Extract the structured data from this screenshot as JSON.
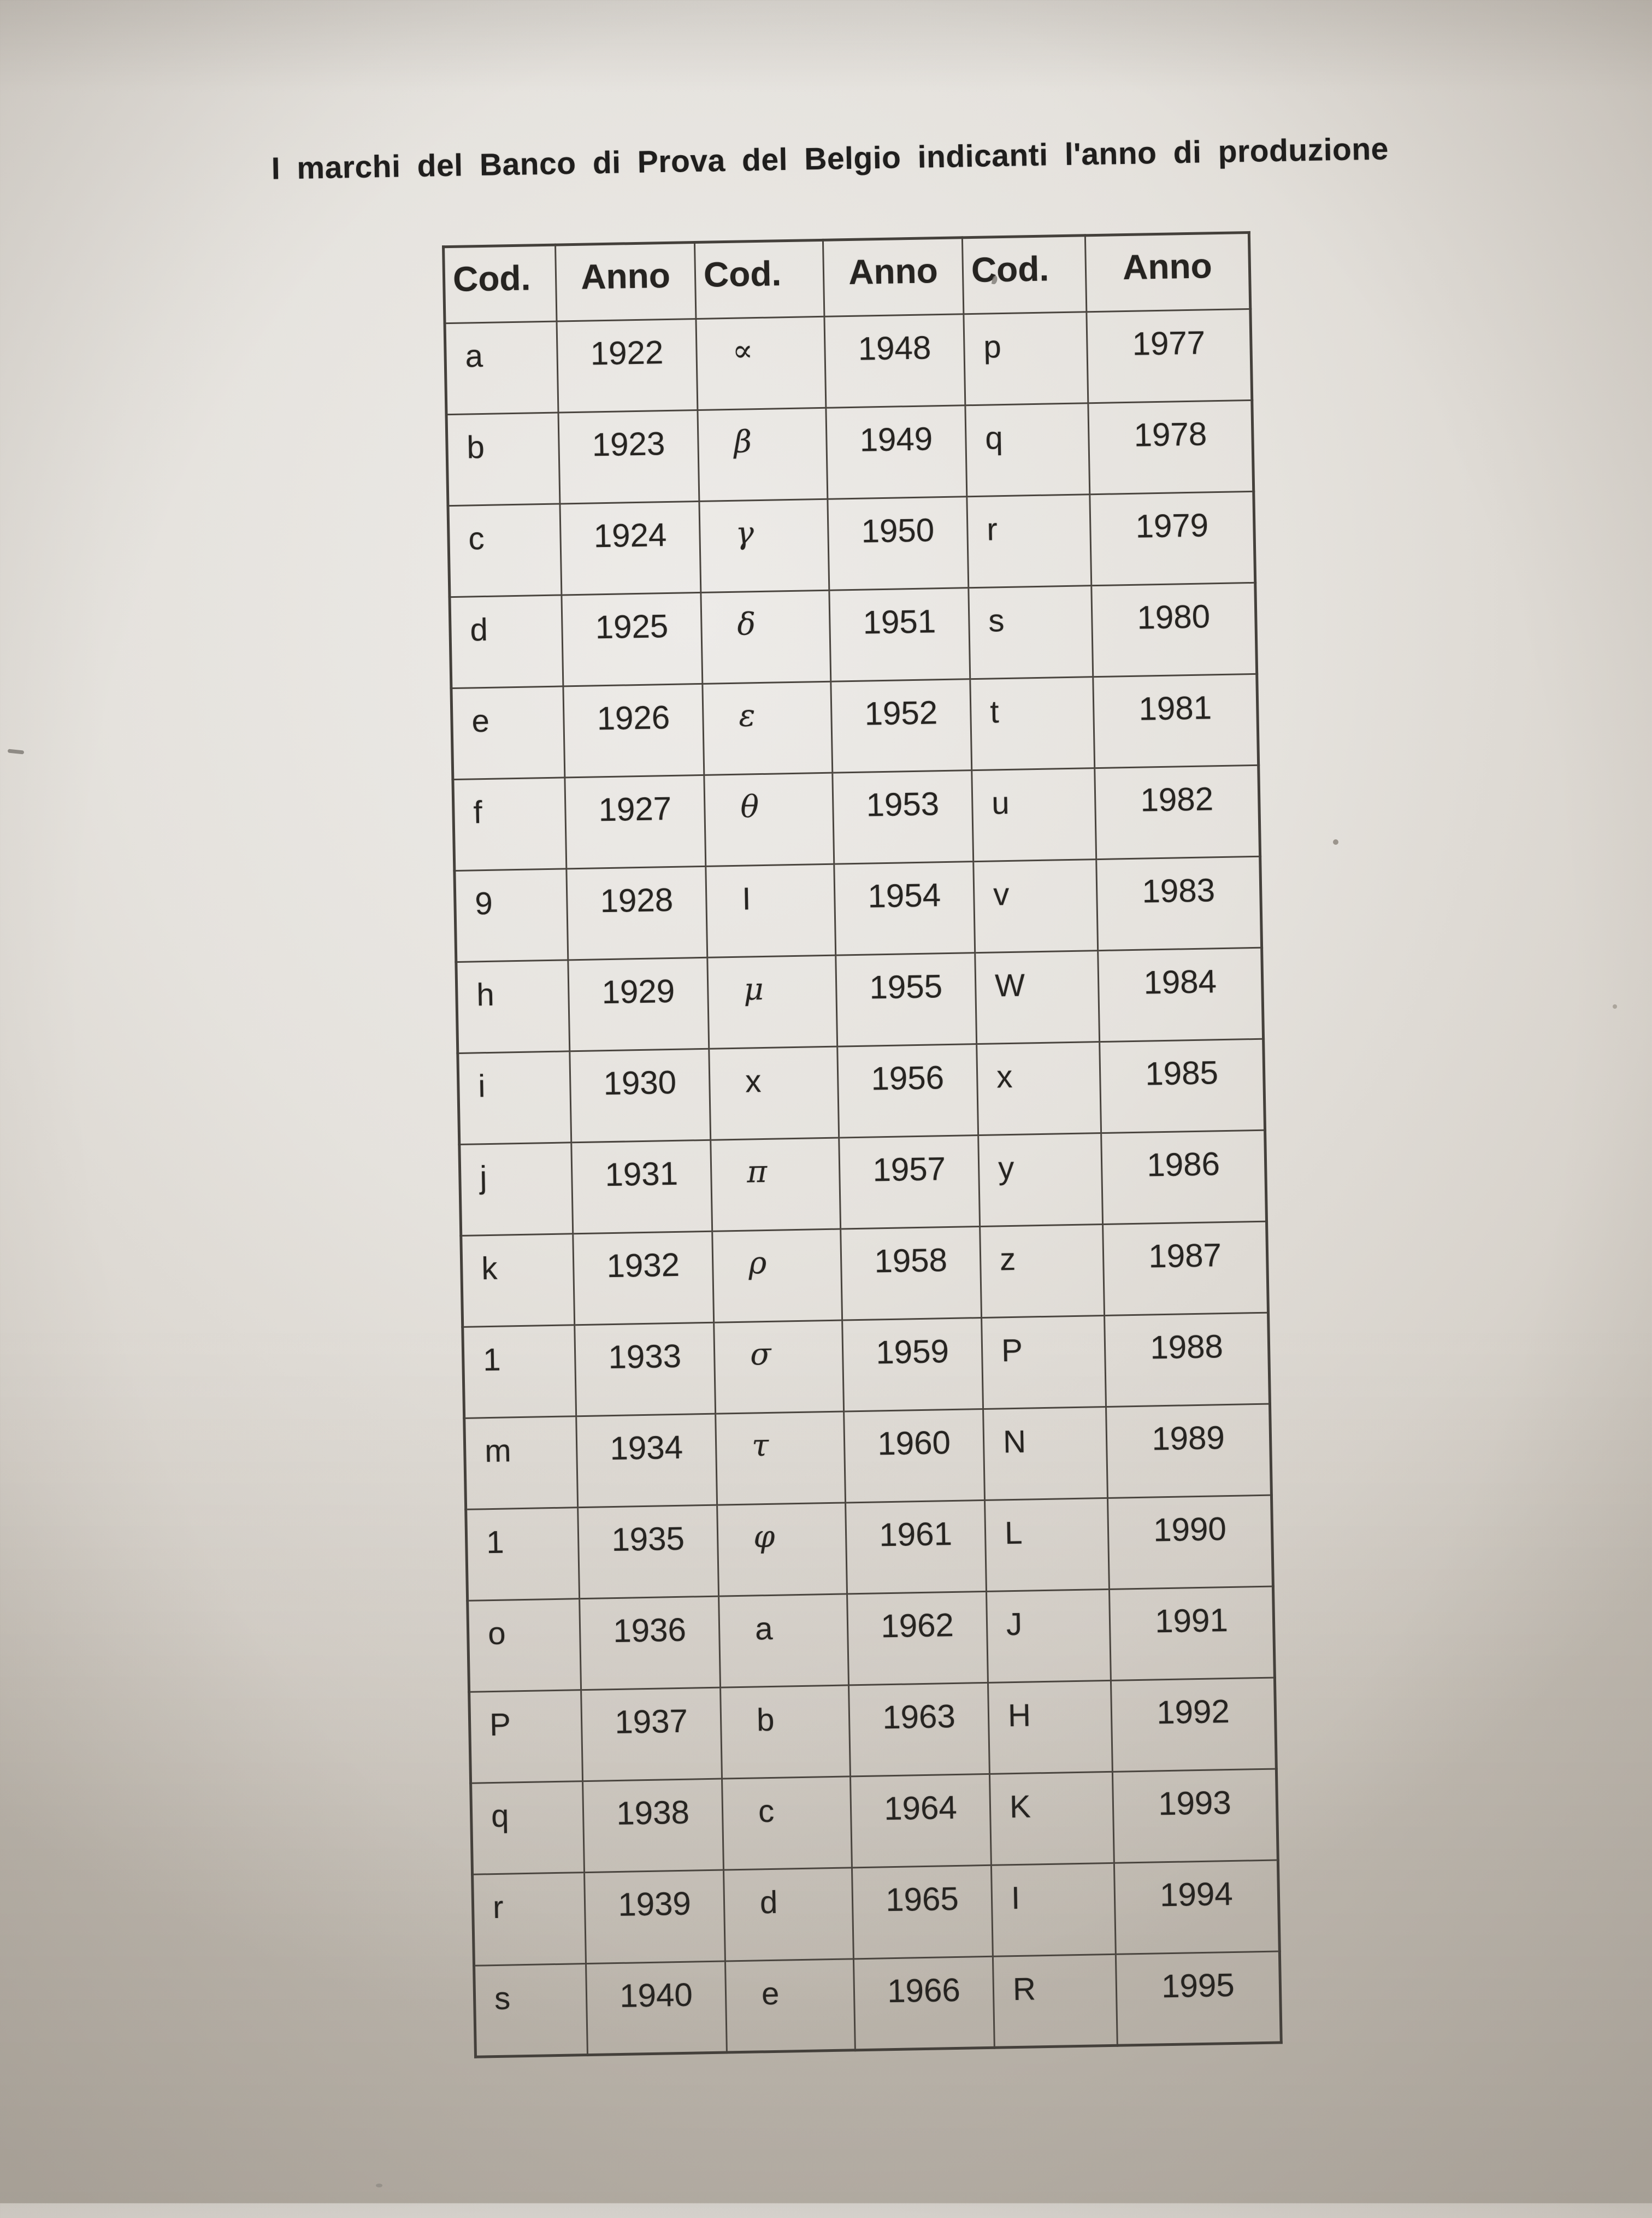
{
  "page": {
    "title": "I marchi del Banco di Prova del Belgio indicanti l'anno di produzione"
  },
  "table": {
    "headers": [
      {
        "label": "Cod."
      },
      {
        "label": "Anno"
      },
      {
        "label": "Cod."
      },
      {
        "label": "Anno"
      },
      {
        "label": "Cod."
      },
      {
        "label": "Anno"
      }
    ],
    "rows": [
      {
        "c1": "a",
        "y1": "1922",
        "c2": "∝",
        "c2_greek": true,
        "y2": "1948",
        "c3": "p",
        "y3": "1977"
      },
      {
        "c1": "b",
        "y1": "1923",
        "c2": "β",
        "c2_greek": true,
        "y2": "1949",
        "c3": "q",
        "y3": "1978"
      },
      {
        "c1": "c",
        "y1": "1924",
        "c2": "γ",
        "c2_greek": true,
        "y2": "1950",
        "c3": "r",
        "y3": "1979"
      },
      {
        "c1": "d",
        "y1": "1925",
        "c2": "δ",
        "c2_greek": true,
        "y2": "1951",
        "c3": "s",
        "y3": "1980"
      },
      {
        "c1": "e",
        "y1": "1926",
        "c2": "ε",
        "c2_greek": true,
        "y2": "1952",
        "c3": "t",
        "y3": "1981"
      },
      {
        "c1": "f",
        "y1": "1927",
        "c2": "θ",
        "c2_greek": true,
        "y2": "1953",
        "c3": "u",
        "y3": "1982"
      },
      {
        "c1": "9",
        "y1": "1928",
        "c2": "I",
        "c2_greek": false,
        "y2": "1954",
        "c3": "v",
        "y3": "1983"
      },
      {
        "c1": "h",
        "y1": "1929",
        "c2": "μ",
        "c2_greek": true,
        "y2": "1955",
        "c3": "W",
        "y3": "1984"
      },
      {
        "c1": "i",
        "y1": "1930",
        "c2": "x",
        "c2_greek": false,
        "y2": "1956",
        "c3": "x",
        "y3": "1985"
      },
      {
        "c1": "j",
        "y1": "1931",
        "c2": "π",
        "c2_greek": true,
        "y2": "1957",
        "c3": "y",
        "y3": "1986"
      },
      {
        "c1": "k",
        "y1": "1932",
        "c2": "ρ",
        "c2_greek": true,
        "y2": "1958",
        "c3": "z",
        "y3": "1987"
      },
      {
        "c1": "1",
        "y1": "1933",
        "c2": "σ",
        "c2_greek": true,
        "y2": "1959",
        "c3": "P",
        "y3": "1988"
      },
      {
        "c1": "m",
        "y1": "1934",
        "c2": "τ",
        "c2_greek": true,
        "y2": "1960",
        "c3": "N",
        "y3": "1989"
      },
      {
        "c1": "1",
        "y1": "1935",
        "c2": "φ",
        "c2_greek": true,
        "y2": "1961",
        "c3": "L",
        "y3": "1990"
      },
      {
        "c1": "o",
        "y1": "1936",
        "c2": "a",
        "c2_greek": false,
        "y2": "1962",
        "c3": "J",
        "y3": "1991"
      },
      {
        "c1": "P",
        "y1": "1937",
        "c2": "b",
        "c2_greek": false,
        "y2": "1963",
        "c3": "H",
        "y3": "1992"
      },
      {
        "c1": "q",
        "y1": "1938",
        "c2": "c",
        "c2_greek": false,
        "y2": "1964",
        "c3": "K",
        "y3": "1993"
      },
      {
        "c1": "r",
        "y1": "1939",
        "c2": "d",
        "c2_greek": false,
        "y2": "1965",
        "c3": "I",
        "y3": "1994"
      },
      {
        "c1": "s",
        "y1": "1940",
        "c2": "e",
        "c2_greek": false,
        "y2": "1966",
        "c3": "R",
        "y3": "1995"
      }
    ]
  }
}
